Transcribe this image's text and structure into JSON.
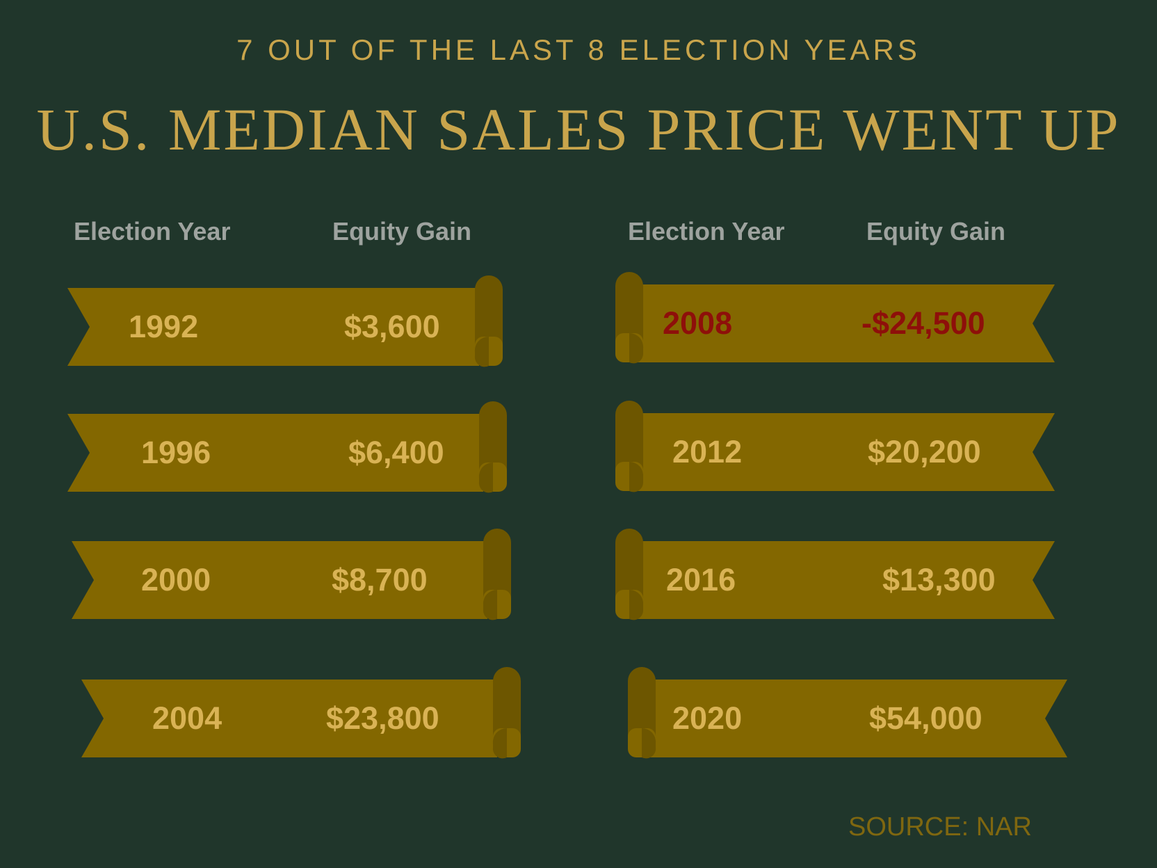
{
  "header": {
    "subtitle": "7 OUT OF THE LAST 8 ELECTION YEARS",
    "title": "U.S. MEDIAN SALES PRICE WENT UP"
  },
  "columns": {
    "left": {
      "year_label": "Election Year",
      "gain_label": "Equity Gain"
    },
    "right": {
      "year_label": "Election Year",
      "gain_label": "Equity Gain"
    }
  },
  "rows": [
    {
      "year": "1992",
      "gain": "$3,600"
    },
    {
      "year": "1996",
      "gain": "$6,400"
    },
    {
      "year": "2000",
      "gain": "$8,700"
    },
    {
      "year": "2004",
      "gain": "$23,800"
    },
    {
      "year": "2008",
      "gain": "-$24,500"
    },
    {
      "year": "2012",
      "gain": "$20,200"
    },
    {
      "year": "2016",
      "gain": "$13,300"
    },
    {
      "year": "2020",
      "gain": "$54,000"
    }
  ],
  "footer": {
    "source": "SOURCE: NAR"
  },
  "colors": {
    "background": "#20362b",
    "ribbon": "#836700",
    "ribbon_curl": "#6d5600",
    "value_text": "#d9b355",
    "negative_text": "#8e0f0a",
    "header_text": "#c9a54c",
    "column_label": "#9ea39f"
  }
}
